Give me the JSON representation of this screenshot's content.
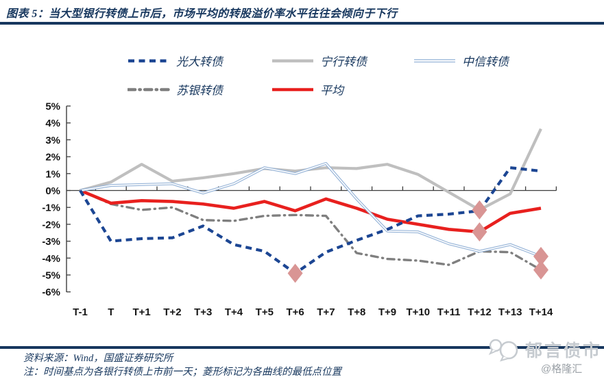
{
  "title": "图表 5：当大型银行转债上市后，市场平均的转股溢价率水平往往会倾向于下行",
  "chart_data": {
    "type": "line",
    "categories": [
      "T-1",
      "T",
      "T+1",
      "T+2",
      "T+3",
      "T+4",
      "T+5",
      "T+6",
      "T+7",
      "T+8",
      "T+9",
      "T+10",
      "T+11",
      "T+12",
      "T+13",
      "T+14"
    ],
    "unit": "%",
    "ylim": [
      -6,
      5
    ],
    "ytick_step": 1,
    "legend_position": "top",
    "grid": "zero-baseline-only",
    "marker_color": "#D99594",
    "marker_note": "菱形标记为各曲线的最低点位置",
    "series": [
      {
        "name": "光大转债",
        "color": "#1C4693",
        "line_style": "dashed",
        "values": [
          0,
          -3.0,
          -2.85,
          -2.8,
          -2.1,
          -3.2,
          -3.6,
          -4.9,
          -3.65,
          -2.95,
          -2.3,
          -1.5,
          -1.4,
          -1.2,
          1.35,
          1.15
        ],
        "min_marker": {
          "category": "T+6",
          "value": -4.9
        }
      },
      {
        "name": "宁行转债",
        "color": "#BFBFBF",
        "line_style": "thick",
        "values": [
          0,
          0.5,
          1.55,
          0.55,
          0.75,
          1.0,
          1.3,
          1.15,
          1.35,
          1.3,
          1.55,
          0.95,
          -0.1,
          -1.15,
          -0.2,
          3.65
        ],
        "min_marker": {
          "category": "T+12",
          "value": -1.15
        }
      },
      {
        "name": "中信转债",
        "color": "#95B3D7",
        "line_style": "double",
        "values": [
          0,
          0.3,
          0.35,
          0.4,
          -0.15,
          0.4,
          1.35,
          1.0,
          1.6,
          -0.5,
          -2.4,
          -2.45,
          -3.15,
          -3.6,
          -3.2,
          -3.9
        ],
        "min_marker": {
          "category": "T+14",
          "value": -3.9
        }
      },
      {
        "name": "苏银转债",
        "color": "#7F7F7F",
        "line_style": "dash-dot",
        "values": [
          0,
          -0.8,
          -1.15,
          -1.0,
          -1.75,
          -1.8,
          -1.5,
          -1.45,
          -1.5,
          -3.7,
          -4.05,
          -4.15,
          -4.4,
          -3.6,
          -3.65,
          -4.7
        ],
        "min_marker": {
          "category": "T+14",
          "value": -4.7
        }
      },
      {
        "name": "平均",
        "color": "#E8201E",
        "line_style": "solid",
        "values": [
          0,
          -0.75,
          -0.6,
          -0.65,
          -0.8,
          -1.05,
          -0.65,
          -1.2,
          -0.5,
          -1.05,
          -1.7,
          -2.0,
          -2.3,
          -2.45,
          -1.35,
          -1.05
        ],
        "min_marker": {
          "category": "T+12",
          "value": -2.45
        }
      }
    ]
  },
  "footer": {
    "source": "资料来源：Wind，国盛证券研究所",
    "note": "注：时间基点为各银行转债上市前一天；菱形标记为各曲线的最低点位置"
  },
  "watermark": {
    "text": "郁言债市",
    "handle": "@格隆汇"
  }
}
